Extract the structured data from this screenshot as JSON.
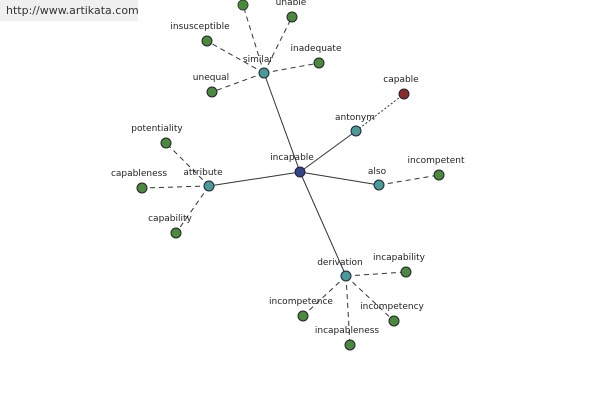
{
  "header": {
    "url": "http://www.artikata.com"
  },
  "nodes": [
    {
      "label": "incapable"
    },
    {
      "label": "similar"
    },
    {
      "label": "antonym"
    },
    {
      "label": "also"
    },
    {
      "label": "attribute"
    },
    {
      "label": "derivation"
    },
    {
      "label": "unable"
    },
    {
      "label": "insusceptible"
    },
    {
      "label": "inadequate"
    },
    {
      "label": "unequal"
    },
    {
      "label": "capable"
    },
    {
      "label": "incompetent"
    },
    {
      "label": "potentiality"
    },
    {
      "label": "capableness"
    },
    {
      "label": "capability"
    },
    {
      "label": "incapability"
    },
    {
      "label": "incompetence"
    },
    {
      "label": "incompetency"
    },
    {
      "label": "incapableness"
    }
  ]
}
